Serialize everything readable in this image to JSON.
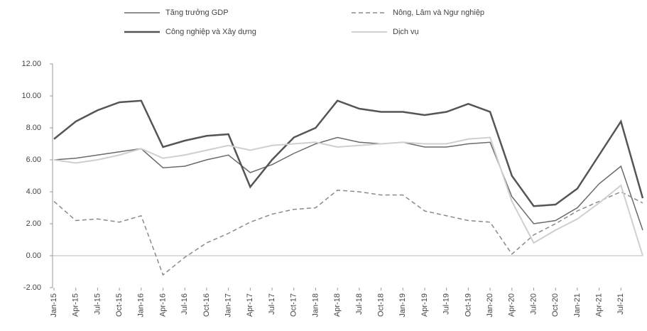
{
  "chart_data": {
    "type": "line",
    "categories": [
      "Jan-15",
      "Apr-15",
      "Jul-15",
      "Oct-15",
      "Jan-16",
      "Apr-16",
      "Jul-16",
      "Oct-16",
      "Jan-17",
      "Apr-17",
      "Jul-17",
      "Oct-17",
      "Jan-18",
      "Apr-18",
      "Jul-18",
      "Oct-18",
      "Jan-19",
      "Apr-19",
      "Jul-19",
      "Oct-19",
      "Jan-20",
      "Apr-20",
      "Jul-20",
      "Oct-20",
      "Jan-21",
      "Apr-21",
      "Jul-21",
      null
    ],
    "series": [
      {
        "name": "Tăng trưởng GDP",
        "color": "#6a6a6a",
        "width": 1.5,
        "dash": false,
        "values": [
          6.0,
          6.1,
          6.3,
          6.5,
          6.7,
          5.5,
          5.6,
          6.0,
          6.3,
          5.2,
          5.7,
          6.4,
          7.0,
          7.4,
          7.1,
          7.0,
          7.1,
          6.8,
          6.8,
          7.0,
          7.1,
          3.7,
          2.0,
          2.2,
          3.0,
          4.5,
          5.6,
          1.6
        ]
      },
      {
        "name": "Nông, Lâm và Ngư nghiệp",
        "color": "#8a8a8a",
        "width": 1.5,
        "dash": true,
        "values": [
          3.4,
          2.2,
          2.3,
          2.1,
          2.5,
          -1.2,
          -0.1,
          0.8,
          1.4,
          2.1,
          2.6,
          2.9,
          3.0,
          4.1,
          4.0,
          3.8,
          3.8,
          2.8,
          2.5,
          2.2,
          2.1,
          0.1,
          1.3,
          2.0,
          2.8,
          3.4,
          4.0,
          3.3
        ]
      },
      {
        "name": "Công nghiệp và Xây dựng",
        "color": "#555555",
        "width": 2.5,
        "dash": false,
        "values": [
          7.3,
          8.4,
          9.1,
          9.6,
          9.7,
          6.8,
          7.2,
          7.5,
          7.6,
          4.3,
          6.0,
          7.4,
          8.0,
          9.7,
          9.2,
          9.0,
          9.0,
          8.8,
          9.0,
          9.5,
          9.0,
          5.0,
          3.1,
          3.2,
          4.2,
          6.3,
          8.4,
          3.6
        ]
      },
      {
        "name": "Dịch vụ",
        "color": "#cfcfcf",
        "width": 2,
        "dash": false,
        "values": [
          6.0,
          5.8,
          6.0,
          6.3,
          6.7,
          6.1,
          6.3,
          6.6,
          6.9,
          6.6,
          6.9,
          7.0,
          7.1,
          6.8,
          6.9,
          7.0,
          7.1,
          7.0,
          7.0,
          7.3,
          7.4,
          3.4,
          0.8,
          1.6,
          2.3,
          3.3,
          4.4,
          0.0
        ]
      }
    ],
    "ylim": [
      -2,
      12
    ],
    "yticks": [
      {
        "value": -2,
        "label": "-2.00"
      },
      {
        "value": 0,
        "label": "0.00"
      },
      {
        "value": 2,
        "label": "2.00"
      },
      {
        "value": 4,
        "label": "4.00"
      },
      {
        "value": 6,
        "label": "6.00"
      },
      {
        "value": 8,
        "label": "8.00"
      },
      {
        "value": 10,
        "label": "10.00"
      },
      {
        "value": 12,
        "label": "12.00"
      }
    ],
    "legend": "top"
  }
}
